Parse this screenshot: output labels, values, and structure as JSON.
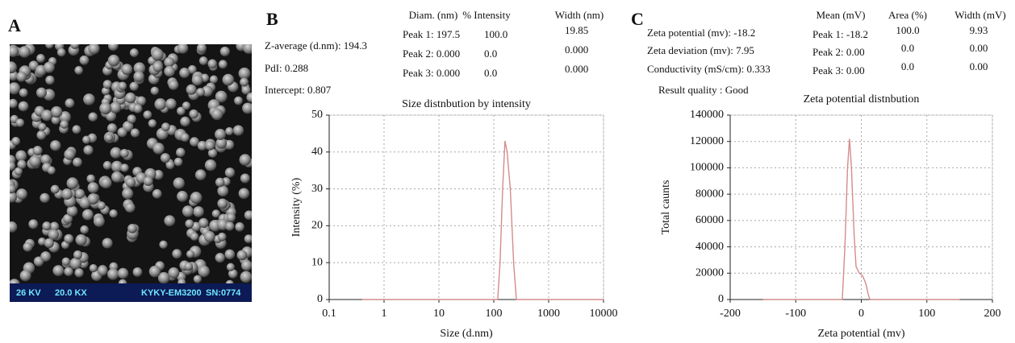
{
  "panel_a": {
    "label": "A",
    "caption": [
      "26 KV",
      "20.0 KX",
      "KYKY-EM3200",
      "SN:0774"
    ]
  },
  "panel_b": {
    "label": "B",
    "summary": [
      "Z-average (d.nm): 194.3",
      "PdI: 0.288",
      "Intercept: 0.807"
    ],
    "table": {
      "header": [
        "Diam. (nm)",
        "% Intensity",
        "Width (nm)"
      ],
      "rows": [
        [
          "Peak 1: 197.5",
          "100.0",
          "19.85"
        ],
        [
          "Peak 2: 0.000",
          "0.0",
          "0.000"
        ],
        [
          "Peak 3: 0.000",
          "0.0",
          "0.000"
        ]
      ]
    }
  },
  "panel_c": {
    "label": "C",
    "summary": [
      "Zeta potential (mv): -18.2",
      "Zeta deviation (mv): 7.95",
      "Conductivity (mS/cm): 0.333",
      "Result quality : Good"
    ],
    "table": {
      "header": [
        "Mean (mV)",
        "Area (%)",
        "Width (mV)"
      ],
      "rows": [
        [
          "Peak 1: -18.2",
          "100.0",
          "9.93"
        ],
        [
          "Peak 2: 0.00",
          "0.0",
          "0.00"
        ],
        [
          "Peak 3: 0.00",
          "0.0",
          "0.00"
        ]
      ]
    }
  },
  "chart_data": [
    {
      "type": "line",
      "title": "Size distnbution by intensity",
      "x_label": "Size (d.nm)",
      "y_label": "Intensity (%)",
      "x_log": true,
      "xlim": [
        0.1,
        10000
      ],
      "xticks": [
        0.1,
        1,
        10,
        100,
        1000,
        10000
      ],
      "ylim": [
        0,
        50
      ],
      "yticks": [
        0,
        10,
        20,
        30,
        40,
        50
      ],
      "grid": true,
      "color": "#d48c8c",
      "x": [
        0.4,
        1,
        10,
        100,
        118,
        130,
        145,
        160,
        175,
        200,
        230,
        258,
        1000,
        10000
      ],
      "values": [
        0,
        0,
        0,
        0,
        0,
        10,
        30,
        43,
        40,
        30,
        10,
        0,
        0,
        0
      ]
    },
    {
      "type": "line",
      "title": "Zeta potential distnbution",
      "x_label": "Zeta potential (mv)",
      "y_label": "Total caunts",
      "x_log": false,
      "xlim": [
        -200,
        200
      ],
      "xticks": [
        -200,
        -100,
        0,
        100,
        200
      ],
      "ylim": [
        0,
        140000
      ],
      "yticks": [
        0,
        20000,
        40000,
        60000,
        80000,
        100000,
        120000,
        140000
      ],
      "grid": true,
      "color": "#d48c8c",
      "x": [
        -150,
        -29,
        -25,
        -21,
        -18,
        -15,
        -11,
        -8,
        -3,
        2,
        7,
        10,
        13,
        150
      ],
      "values": [
        0,
        0,
        40000,
        100000,
        122000,
        100000,
        50000,
        25000,
        20000,
        18000,
        12000,
        5000,
        0,
        0
      ]
    }
  ]
}
